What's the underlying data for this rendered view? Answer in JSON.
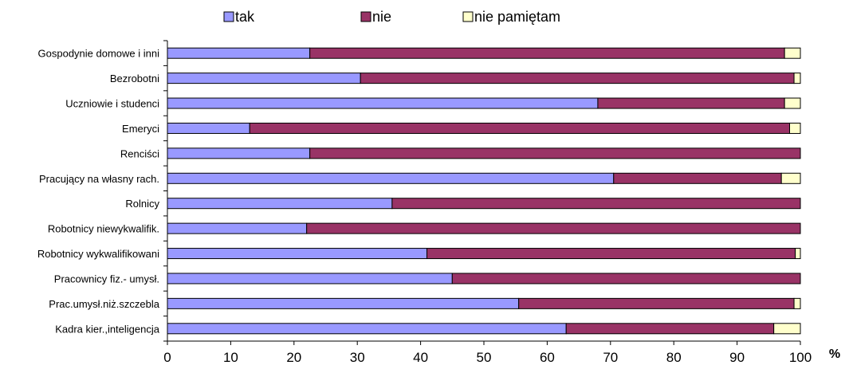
{
  "chart_data": {
    "type": "bar",
    "orientation": "horizontal",
    "stacked": true,
    "categories": [
      "Gospodynie domowe i inni",
      "Bezrobotni",
      "Uczniowie i studenci",
      "Emeryci",
      "Renciści",
      "Pracujący na własny rach.",
      "Rolnicy",
      "Robotnicy niewykwalifik.",
      "Robotnicy wykwalifikowani",
      "Pracownicy fiz.- umysł.",
      "Prac.umysł.niż.szczebla",
      "Kadra kier.,inteligencja"
    ],
    "series": [
      {
        "name": "tak",
        "color": "#9999ff",
        "values": [
          22.5,
          30.5,
          68,
          13,
          22.5,
          70.5,
          35.5,
          22,
          41,
          45,
          55.5,
          63
        ]
      },
      {
        "name": "nie",
        "color": "#993366",
        "values": [
          75,
          68.5,
          29.5,
          85.3,
          77.5,
          26.5,
          64.5,
          78,
          58.2,
          55,
          43.5,
          32.8
        ]
      },
      {
        "name": "nie pamiętam",
        "color": "#ffffcc",
        "values": [
          2.5,
          1,
          2.5,
          1.7,
          0,
          3,
          0,
          0,
          0.8,
          0,
          1,
          4.2
        ]
      }
    ],
    "xlim": [
      0,
      100
    ],
    "xticks": [
      "0",
      "10",
      "20",
      "30",
      "40",
      "50",
      "60",
      "70",
      "80",
      "90",
      "100"
    ],
    "x_unit": "%",
    "grid": false,
    "legend_position": "top"
  }
}
